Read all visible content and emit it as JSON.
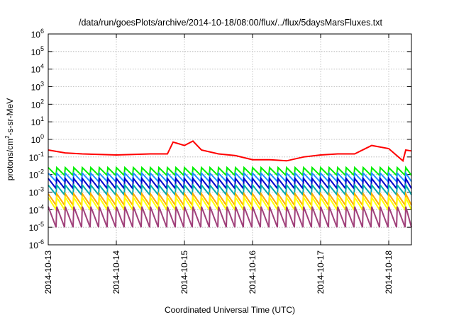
{
  "chart_data": {
    "type": "line",
    "title": "/data/run/goesPlots/archive/2014-10-18/08:00/flux/../flux/5daysMarsFluxes.txt",
    "xlabel": "Coordinated Universal Time (UTC)",
    "ylabel": {
      "prefix": "protons/cm",
      "sup": "2",
      "suffix": "-s-sr-MeV"
    },
    "yscale": "log",
    "ylim": [
      1e-06,
      1000000.0
    ],
    "xlim": [
      "2014-10-13",
      "2014-10-18 08:00"
    ],
    "grid": true,
    "legend": "none",
    "y_ticks": [
      {
        "base": "10",
        "exp": "-6",
        "value": 1e-06
      },
      {
        "base": "10",
        "exp": "-5",
        "value": 1e-05
      },
      {
        "base": "10",
        "exp": "-4",
        "value": 0.0001
      },
      {
        "base": "10",
        "exp": "-3",
        "value": 0.001
      },
      {
        "base": "10",
        "exp": "-2",
        "value": 0.01
      },
      {
        "base": "10",
        "exp": "-1",
        "value": 0.1
      },
      {
        "base": "10",
        "exp": "0",
        "value": 1
      },
      {
        "base": "10",
        "exp": "1",
        "value": 10
      },
      {
        "base": "10",
        "exp": "2",
        "value": 100
      },
      {
        "base": "10",
        "exp": "3",
        "value": 1000
      },
      {
        "base": "10",
        "exp": "4",
        "value": 10000
      },
      {
        "base": "10",
        "exp": "5",
        "value": 100000
      },
      {
        "base": "10",
        "exp": "6",
        "value": 1000000
      }
    ],
    "x_ticks": [
      "2014-10-13",
      "2014-10-14",
      "2014-10-15",
      "2014-10-16",
      "2014-10-17",
      "2014-10-18"
    ],
    "series": [
      {
        "color": "#ff0000",
        "x": [
          "2014-10-13 00:00",
          "2014-10-13 06:00",
          "2014-10-13 12:00",
          "2014-10-13 18:00",
          "2014-10-14 00:00",
          "2014-10-14 06:00",
          "2014-10-14 12:00",
          "2014-10-14 18:00",
          "2014-10-14 20:00",
          "2014-10-15 00:00",
          "2014-10-15 03:00",
          "2014-10-15 06:00",
          "2014-10-15 12:00",
          "2014-10-15 18:00",
          "2014-10-16 00:00",
          "2014-10-16 06:00",
          "2014-10-16 12:00",
          "2014-10-16 18:00",
          "2014-10-17 00:00",
          "2014-10-17 06:00",
          "2014-10-17 12:00",
          "2014-10-17 18:00",
          "2014-10-18 00:00",
          "2014-10-18 05:00",
          "2014-10-18 06:00",
          "2014-10-18 08:00"
        ],
        "values": [
          0.25,
          0.17,
          0.15,
          0.14,
          0.13,
          0.14,
          0.15,
          0.15,
          0.7,
          0.45,
          0.8,
          0.25,
          0.15,
          0.12,
          0.07,
          0.07,
          0.06,
          0.1,
          0.13,
          0.15,
          0.15,
          0.45,
          0.3,
          0.06,
          0.25,
          0.22
        ]
      },
      {
        "color": "#00ee00",
        "peak": 0.025,
        "trough": 0.009
      },
      {
        "color": "#1e90ff",
        "peak": 0.012,
        "trough": 0.004
      },
      {
        "color": "#0000cc",
        "peak": 0.006,
        "trough": 0.0016
      },
      {
        "color": "#00aaaa",
        "peak": 0.0025,
        "trough": 0.0007
      },
      {
        "color": "#ffaa00",
        "peak": 0.0008,
        "trough": 0.00018
      },
      {
        "color": "#ffff00",
        "peak": 0.0005,
        "trough": 0.0001
      },
      {
        "color": "#a0407a",
        "peak": 0.00015,
        "trough": 1e-05
      }
    ]
  }
}
